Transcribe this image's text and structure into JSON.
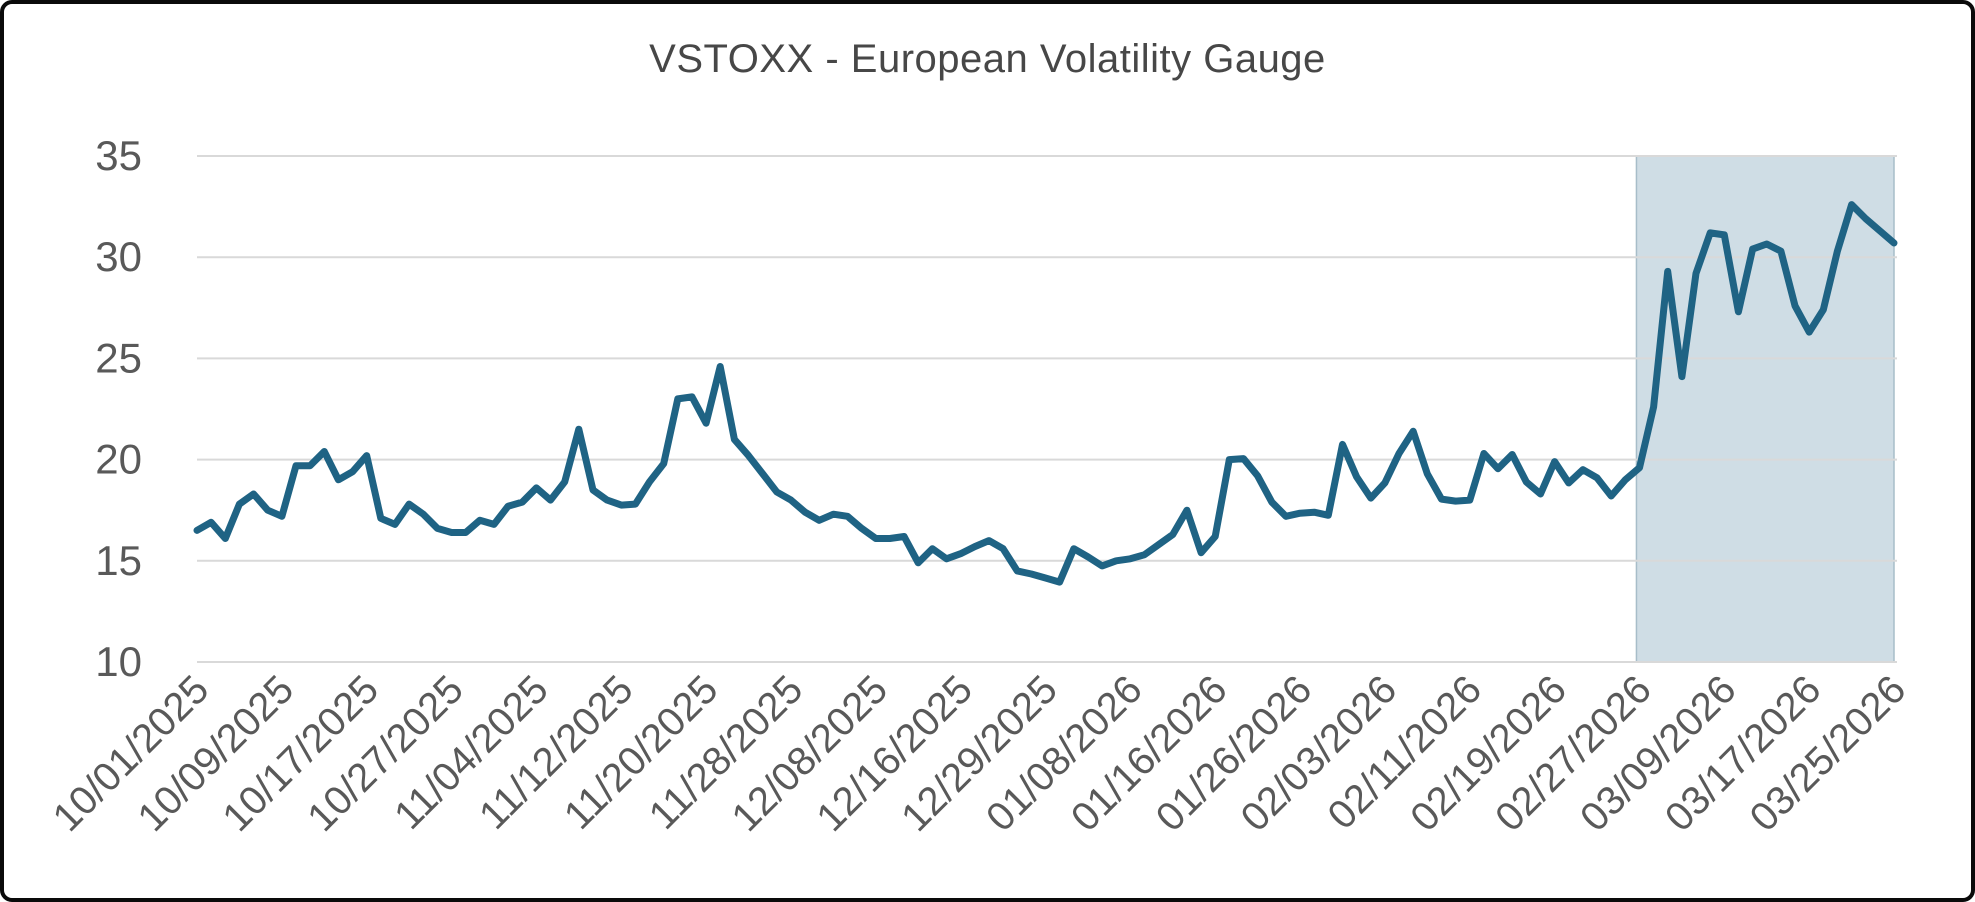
{
  "chart_data": {
    "type": "line",
    "title": "VSTOXX - European Volatility Gauge",
    "xlabel": "",
    "ylabel": "",
    "ylim": [
      10,
      35
    ],
    "y_ticks": [
      35,
      30,
      25,
      20,
      15,
      10
    ],
    "grid": "horizontal-only",
    "legend": "none",
    "x_ticks_every_n_points": 6,
    "x_tick_labels": [
      "10/01/2025",
      "10/09/2025",
      "10/17/2025",
      "10/27/2025",
      "11/04/2025",
      "11/12/2025",
      "11/20/2025",
      "11/28/2025",
      "12/08/2025",
      "12/16/2025",
      "12/29/2025",
      "01/08/2026",
      "01/16/2026",
      "01/26/2026",
      "02/03/2026",
      "02/11/2026",
      "02/19/2026",
      "02/27/2026",
      "03/09/2026",
      "03/17/2026",
      "03/25/2026"
    ],
    "values": [
      16.5,
      16.9,
      16.1,
      17.8,
      18.3,
      17.5,
      17.2,
      19.7,
      19.7,
      20.4,
      19.0,
      19.4,
      20.2,
      17.1,
      16.8,
      17.8,
      17.3,
      16.6,
      16.4,
      16.4,
      17.0,
      16.8,
      17.7,
      17.9,
      18.6,
      18.0,
      18.9,
      21.5,
      18.5,
      18.0,
      17.75,
      17.8,
      18.9,
      19.8,
      23.0,
      23.1,
      21.8,
      24.6,
      21.0,
      20.2,
      19.3,
      18.4,
      18.0,
      17.4,
      17.0,
      17.3,
      17.2,
      16.6,
      16.1,
      16.1,
      16.2,
      14.9,
      15.6,
      15.1,
      15.35,
      15.7,
      16.0,
      15.6,
      14.5,
      14.35,
      14.15,
      13.95,
      15.6,
      15.2,
      14.75,
      15.0,
      15.1,
      15.3,
      15.8,
      16.3,
      17.5,
      15.4,
      16.2,
      20.0,
      20.05,
      19.2,
      17.9,
      17.2,
      17.35,
      17.4,
      17.25,
      20.75,
      19.15,
      18.1,
      18.85,
      20.3,
      21.4,
      19.3,
      18.05,
      17.95,
      18.0,
      20.3,
      19.55,
      20.25,
      18.9,
      18.3,
      19.9,
      18.85,
      19.5,
      19.1,
      18.2,
      19.0,
      19.6,
      22.6,
      29.3,
      24.1,
      29.2,
      31.2,
      31.1,
      27.3,
      30.4,
      30.65,
      30.3,
      27.6,
      26.3,
      27.4,
      30.3,
      32.6,
      31.9,
      31.3,
      30.7
    ],
    "shaded_region": {
      "start_label": "02/27/2026",
      "end_label": "03/25/2026",
      "fill": "#cfdde5",
      "border": "#a7bdc9"
    },
    "colors": {
      "line": "#1f6384",
      "gridline": "#d9d9d9",
      "axis_line": "#d9d9d9",
      "tick_label": "#595959",
      "title": "#474747",
      "background": "#ffffff"
    }
  }
}
